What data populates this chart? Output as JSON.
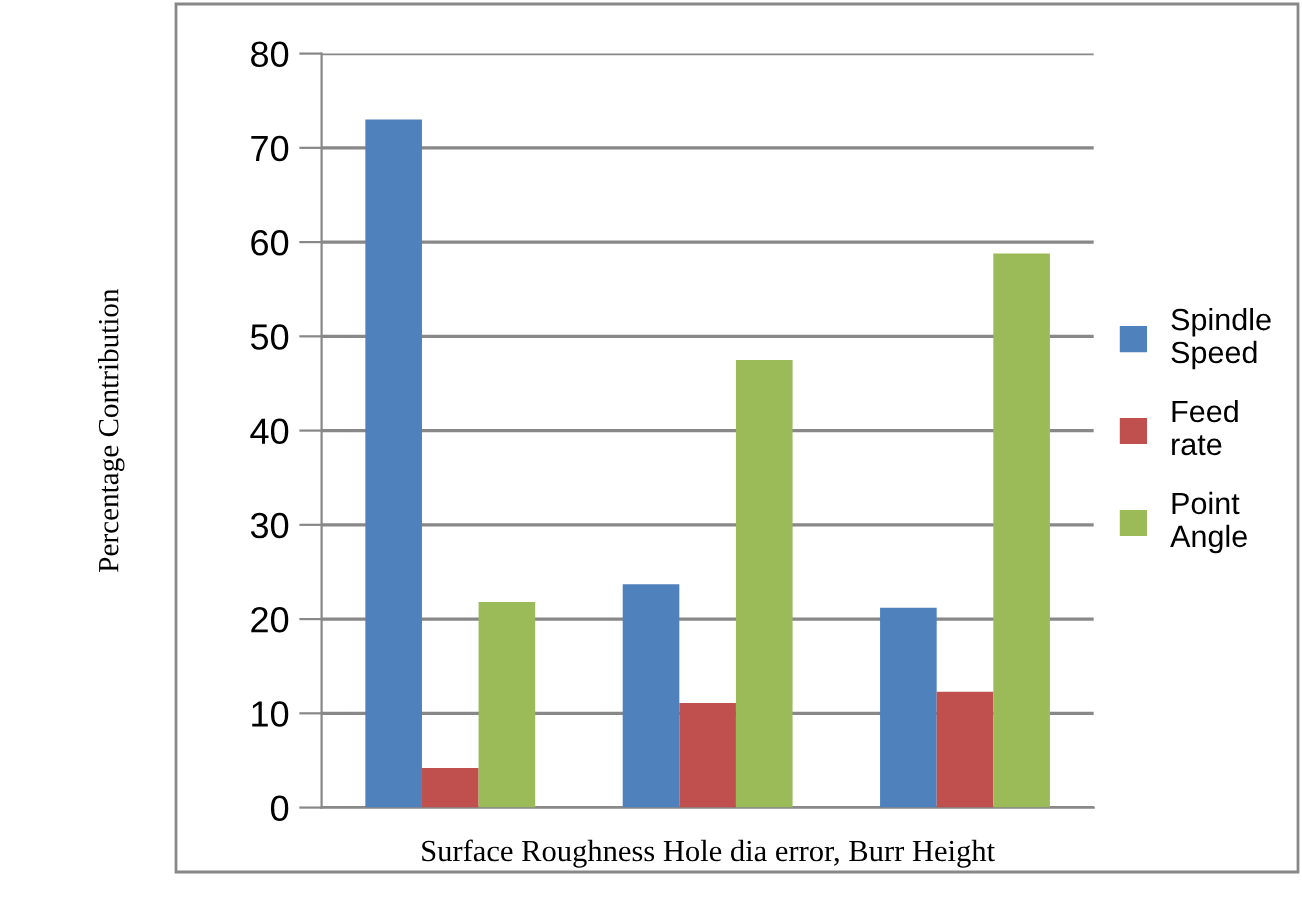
{
  "chart_data": {
    "type": "bar",
    "xlabel": "Surface Roughness Hole dia error, Burr Height",
    "ylabel": "Percentage Contribution",
    "categories": [
      null,
      null,
      null
    ],
    "series": [
      {
        "name": "Spindle Speed",
        "color": "#4f81bd",
        "values": [
          73,
          23.7,
          21.2
        ]
      },
      {
        "name": "Feed rate",
        "color": "#c0504d",
        "values": [
          4.2,
          11.1,
          12.3
        ]
      },
      {
        "name": "Point Angle",
        "color": "#9bbb59",
        "values": [
          21.8,
          47.5,
          58.8
        ]
      }
    ],
    "ylim": [
      0,
      80
    ],
    "yticks": [
      0,
      10,
      20,
      30,
      40,
      50,
      60,
      70,
      80
    ],
    "grid": "y",
    "legend": "right"
  }
}
